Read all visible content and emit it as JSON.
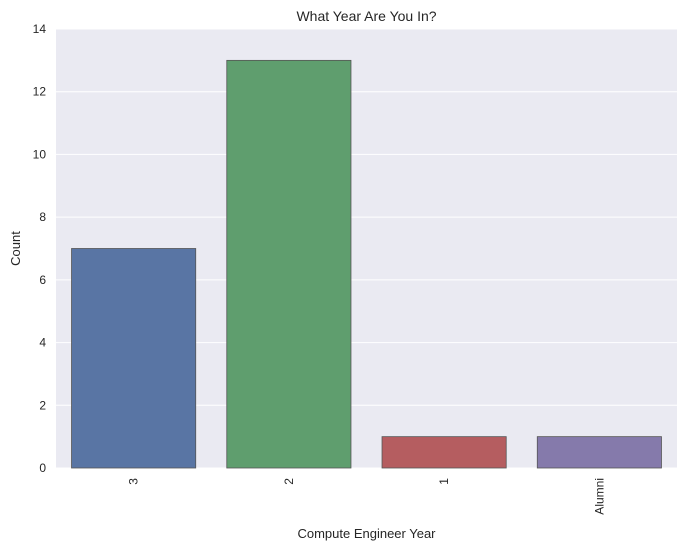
{
  "chart_data": {
    "type": "bar",
    "title": "What Year Are You In?",
    "xlabel": "Compute Engineer Year",
    "ylabel": "Count",
    "categories": [
      "3",
      "2",
      "1",
      "Alumni"
    ],
    "values": [
      7,
      13,
      1,
      1
    ],
    "colors": [
      "#5975a4",
      "#5f9e6e",
      "#b55d60",
      "#857aab"
    ],
    "ylim": [
      0,
      14
    ],
    "yticks": [
      0,
      2,
      4,
      6,
      8,
      10,
      12,
      14
    ],
    "grid": true,
    "background": "#eaeaf2",
    "x_tick_rotation": "vertical"
  }
}
